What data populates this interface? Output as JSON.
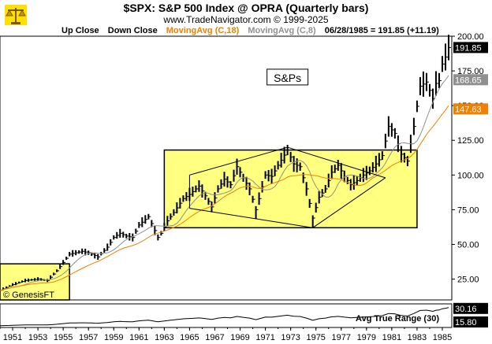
{
  "header": {
    "title": "$SPX:  S&P 500 Index @ OPRA  (Quarterly bars)",
    "subtitle": "www.TradeNavigator.com © 1999-2025"
  },
  "legend": {
    "items": [
      {
        "label": "Up Close",
        "color": "#000000"
      },
      {
        "label": "Down Close",
        "color": "#000000"
      },
      {
        "label": "MovingAvg (C,18)",
        "color": "#f08000"
      },
      {
        "label": "MovingAvg (C,8)",
        "color": "#909090"
      }
    ],
    "last_bar": "06/28/1985 = 191.85 (+11.19)"
  },
  "annotations": {
    "box_label": "S&Ps",
    "watermark": "© GenesisFT"
  },
  "colors": {
    "bars": "#000000",
    "ma18": "#f08000",
    "ma8": "#909090",
    "highlight_box": "#ffff80",
    "highlight_border": "#000000",
    "grid": "#c8c8c8"
  },
  "chart_data": {
    "type": "line",
    "title": "$SPX:  S&P 500 Index @ OPRA  (Quarterly bars)",
    "xlabel": "",
    "ylabel": "",
    "x_range": [
      1950.0,
      1985.75
    ],
    "ylim": [
      10,
      200
    ],
    "y_ticks": [
      25.0,
      50.0,
      75.0,
      100.0,
      125.0,
      150.0,
      175.0,
      200.0
    ],
    "y_tick_labels": [
      "25.00",
      "50.00",
      "75.00",
      "100.00",
      "125.00",
      "150.00",
      "175.00",
      "200.00"
    ],
    "x_ticks": [
      1951,
      1953,
      1955,
      1957,
      1959,
      1961,
      1963,
      1965,
      1967,
      1969,
      1971,
      1973,
      1975,
      1977,
      1979,
      1981,
      1983,
      1985
    ],
    "x_tick_labels": [
      "1951",
      "1953",
      "1955",
      "1957",
      "1959",
      "1961",
      "1963",
      "1965",
      "1967",
      "1969",
      "1971",
      "1973",
      "1975",
      "1977",
      "1979",
      "1981",
      "1983",
      "1985"
    ],
    "price_labels": [
      {
        "value": 191.85,
        "label": "191.85",
        "color": "#000000"
      },
      {
        "value": 168.65,
        "label": "168.65",
        "color": "#909090"
      },
      {
        "value": 147.63,
        "label": "147.63",
        "color": "#f08000"
      }
    ],
    "series": [
      {
        "name": "Up Close",
        "kind": "price-close"
      },
      {
        "name": "MovingAvg (C,18)",
        "kind": "ma18"
      },
      {
        "name": "MovingAvg (C,8)",
        "kind": "ma8"
      }
    ],
    "anchors": [
      [
        1950.0,
        17
      ],
      [
        1951.0,
        21
      ],
      [
        1952.0,
        24
      ],
      [
        1953.0,
        25
      ],
      [
        1953.75,
        24
      ],
      [
        1954.5,
        31
      ],
      [
        1955.0,
        37
      ],
      [
        1955.5,
        43
      ],
      [
        1956.0,
        44
      ],
      [
        1956.5,
        45
      ],
      [
        1957.0,
        44
      ],
      [
        1957.75,
        41
      ],
      [
        1958.5,
        48
      ],
      [
        1959.0,
        55
      ],
      [
        1959.5,
        58
      ],
      [
        1960.0,
        56
      ],
      [
        1960.5,
        55
      ],
      [
        1961.0,
        64
      ],
      [
        1961.75,
        70
      ],
      [
        1962.5,
        55
      ],
      [
        1962.75,
        58
      ],
      [
        1963.25,
        67
      ],
      [
        1963.75,
        73
      ],
      [
        1964.5,
        83
      ],
      [
        1965.0,
        86
      ],
      [
        1965.75,
        92
      ],
      [
        1966.25,
        85
      ],
      [
        1966.75,
        77
      ],
      [
        1967.25,
        90
      ],
      [
        1967.75,
        97
      ],
      [
        1968.25,
        93
      ],
      [
        1968.75,
        106
      ],
      [
        1969.25,
        98
      ],
      [
        1969.75,
        90
      ],
      [
        1970.25,
        75
      ],
      [
        1970.5,
        83
      ],
      [
        1971.0,
        100
      ],
      [
        1971.5,
        99
      ],
      [
        1972.0,
        107
      ],
      [
        1972.75,
        118
      ],
      [
        1973.25,
        108
      ],
      [
        1973.75,
        106
      ],
      [
        1974.25,
        90
      ],
      [
        1974.75,
        69
      ],
      [
        1975.25,
        84
      ],
      [
        1975.75,
        90
      ],
      [
        1976.25,
        102
      ],
      [
        1976.75,
        107
      ],
      [
        1977.25,
        99
      ],
      [
        1977.75,
        93
      ],
      [
        1978.25,
        96
      ],
      [
        1978.75,
        100
      ],
      [
        1979.25,
        103
      ],
      [
        1979.75,
        108
      ],
      [
        1980.25,
        114
      ],
      [
        1980.75,
        135
      ],
      [
        1981.25,
        130
      ],
      [
        1981.75,
        115
      ],
      [
        1982.25,
        110
      ],
      [
        1982.75,
        135
      ],
      [
        1983.25,
        164
      ],
      [
        1983.75,
        167
      ],
      [
        1984.25,
        155
      ],
      [
        1984.5,
        166
      ],
      [
        1984.75,
        168
      ],
      [
        1985.0,
        180
      ],
      [
        1985.25,
        185
      ],
      [
        1985.5,
        191.85
      ]
    ],
    "lows_of_interest": [
      {
        "date": 1966.75,
        "low": 73.2
      },
      {
        "date": 1970.25,
        "low": 68.6
      },
      {
        "date": 1974.75,
        "low": 62.3
      }
    ],
    "atr_panel": {
      "label": "Avg True Range (30)",
      "values": [
        30.16,
        15.8
      ],
      "value_labels": [
        "30.16",
        "15.80"
      ]
    },
    "highlight_boxes": [
      {
        "x_range": [
          1950.0,
          1955.5
        ],
        "y_range": [
          10,
          36
        ]
      },
      {
        "x_range": [
          1963.0,
          1983.0
        ],
        "y_range": [
          62,
          118
        ]
      }
    ],
    "drawn_lines": [
      [
        [
          1965.0,
          100
        ],
        [
          1972.75,
          120
        ]
      ],
      [
        [
          1972.75,
          120
        ],
        [
          1980.5,
          98
        ]
      ],
      [
        [
          1965.0,
          76
        ],
        [
          1974.75,
          62
        ]
      ],
      [
        [
          1974.75,
          62
        ],
        [
          1980.5,
          98
        ]
      ],
      [
        [
          1965.0,
          100
        ],
        [
          1965.0,
          76
        ]
      ]
    ],
    "grid": false,
    "legend_position": "top-left"
  }
}
